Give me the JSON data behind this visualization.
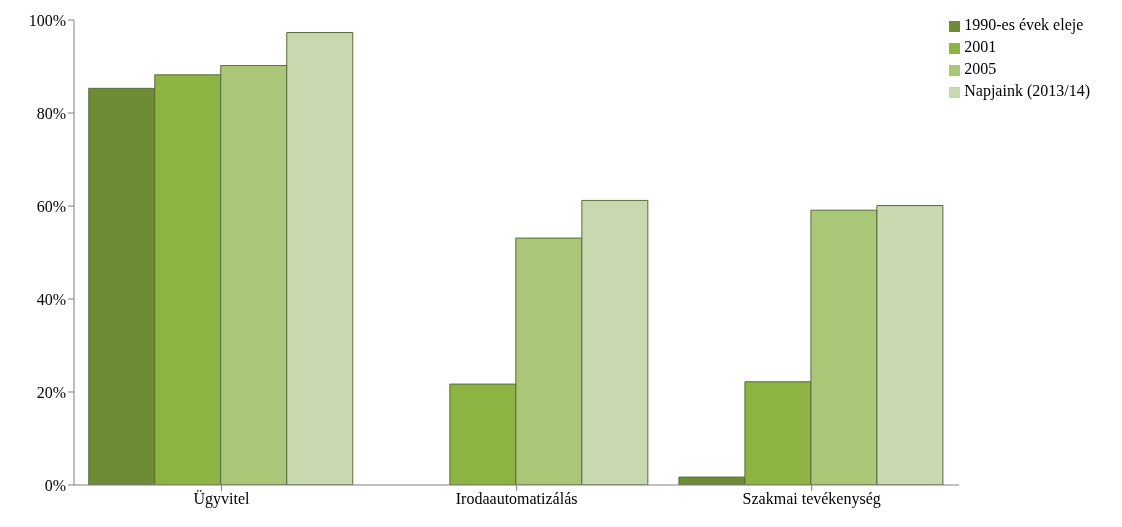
{
  "chart_data": {
    "type": "bar",
    "categories": [
      "Ügyvitel",
      "Irodaautomatizálás",
      "Szakmai tevékenység"
    ],
    "series": [
      {
        "name": "1990-es évek eleje",
        "color": "#6e8c35",
        "values": [
          85.3,
          null,
          1.7
        ]
      },
      {
        "name": "2001",
        "color": "#8db443",
        "values": [
          88.2,
          21.7,
          22.2
        ]
      },
      {
        "name": "2005",
        "color": "#a9c776",
        "values": [
          90.2,
          53.1,
          59.1
        ]
      },
      {
        "name": "Napjaink (2013/14)",
        "color": "#c8d9b0",
        "values": [
          97.3,
          61.2,
          60.1
        ]
      }
    ],
    "ylim": [
      0,
      100
    ],
    "yticks": [
      {
        "value": 0,
        "label": "0%"
      },
      {
        "value": 20,
        "label": "20%"
      },
      {
        "value": 40,
        "label": "40%"
      },
      {
        "value": 60,
        "label": "60%"
      },
      {
        "value": 80,
        "label": "80%"
      },
      {
        "value": 100,
        "label": "100%"
      }
    ],
    "grid": false,
    "legend": "top right"
  }
}
